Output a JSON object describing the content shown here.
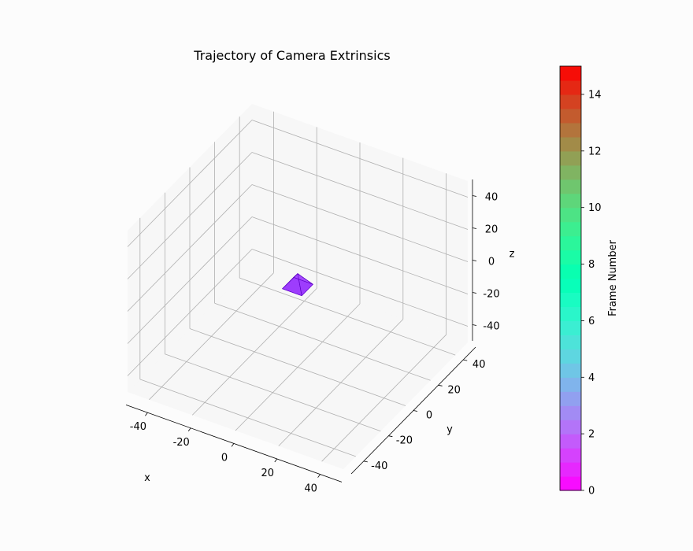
{
  "chart_data": {
    "type": "scatter",
    "title": "Trajectory of Camera Extrinsics",
    "xlabel": "x",
    "ylabel": "y",
    "zlabel": "z",
    "xlim": [
      -50,
      50
    ],
    "ylim": [
      -50,
      50
    ],
    "zlim": [
      -50,
      50
    ],
    "x_ticks": [
      -40,
      -20,
      0,
      20,
      40
    ],
    "y_ticks": [
      -40,
      -20,
      0,
      20,
      40
    ],
    "z_ticks": [
      -40,
      -20,
      0,
      20,
      40
    ],
    "grid": true,
    "camera_frustums": [
      {
        "frame": 0,
        "position": [
          0,
          0,
          0
        ],
        "color": "#8000ff"
      }
    ],
    "colorbar": {
      "label": "Frame Number",
      "min": 0,
      "max": 15,
      "ticks": [
        0,
        2,
        4,
        6,
        8,
        10,
        12,
        14
      ],
      "colormap": "rainbow",
      "levels": 30
    }
  }
}
